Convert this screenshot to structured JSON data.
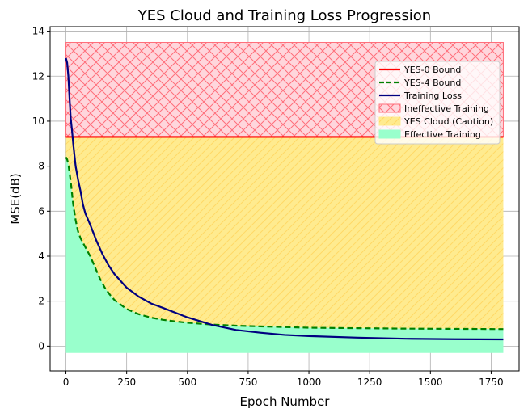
{
  "chart_data": {
    "type": "line",
    "title": "YES Cloud and Training Loss Progression",
    "xlabel": "Epoch Number",
    "ylabel": "MSE(dB)",
    "xlim": [
      -65,
      1865
    ],
    "ylim": [
      -1.1,
      14.2
    ],
    "xticks": [
      0,
      250,
      500,
      750,
      1000,
      1250,
      1500,
      1750
    ],
    "yticks": [
      0,
      2,
      4,
      6,
      8,
      10,
      12,
      14
    ],
    "grid": true,
    "legend_position": "upper-right",
    "colors": {
      "yes0": "#ff0000",
      "yes4": "#008000",
      "training": "#000080",
      "ineffective_fill": "#ffd6dc",
      "ineffective_hatch": "#ff6e7a",
      "caution_fill": "#ffeb8f",
      "caution_hatch": "#ffd966",
      "effective_fill": "#99ffcc"
    },
    "regions": [
      {
        "name": "Ineffective Training",
        "x_range": [
          0,
          1800
        ],
        "y_bottom": 9.3,
        "y_top": 13.5
      },
      {
        "name": "YES Cloud (Caution)",
        "x_range": [
          0,
          1800
        ],
        "y_top": 9.3,
        "lower_series": "YES-4 Bound"
      },
      {
        "name": "Effective Training",
        "x_range": [
          0,
          1800
        ],
        "y_bottom": -0.3,
        "upper_series": "YES-4 Bound"
      }
    ],
    "series": [
      {
        "name": "YES-0 Bound",
        "style": "solid",
        "x": [
          0,
          1800
        ],
        "y": [
          9.3,
          9.3
        ]
      },
      {
        "name": "YES-4 Bound",
        "style": "dashed",
        "x": [
          0,
          5,
          10,
          20,
          30,
          40,
          50,
          60,
          70,
          80,
          100,
          120,
          140,
          160,
          180,
          200,
          250,
          300,
          350,
          400,
          450,
          500,
          600,
          700,
          800,
          900,
          1000,
          1200,
          1400,
          1600,
          1800
        ],
        "y": [
          8.4,
          8.3,
          8.1,
          7.3,
          6.3,
          5.6,
          5.1,
          4.8,
          4.6,
          4.4,
          4.0,
          3.5,
          3.0,
          2.6,
          2.3,
          2.05,
          1.65,
          1.42,
          1.27,
          1.17,
          1.1,
          1.04,
          0.96,
          0.91,
          0.88,
          0.85,
          0.82,
          0.8,
          0.78,
          0.77,
          0.76
        ]
      },
      {
        "name": "Training Loss",
        "style": "solid",
        "x": [
          0,
          5,
          10,
          15,
          20,
          25,
          30,
          40,
          50,
          60,
          70,
          80,
          100,
          125,
          150,
          175,
          200,
          250,
          300,
          350,
          400,
          500,
          600,
          700,
          800,
          900,
          1000,
          1200,
          1400,
          1600,
          1800
        ],
        "y": [
          12.8,
          12.6,
          12.0,
          11.0,
          10.1,
          9.6,
          9.0,
          8.0,
          7.4,
          6.9,
          6.3,
          5.9,
          5.4,
          4.7,
          4.1,
          3.6,
          3.2,
          2.6,
          2.2,
          1.9,
          1.7,
          1.28,
          0.95,
          0.72,
          0.6,
          0.5,
          0.45,
          0.38,
          0.33,
          0.31,
          0.3
        ]
      }
    ],
    "legend": [
      "YES-0 Bound",
      "YES-4 Bound",
      "Training Loss",
      "Ineffective Training",
      "YES Cloud (Caution)",
      "Effective Training"
    ]
  }
}
